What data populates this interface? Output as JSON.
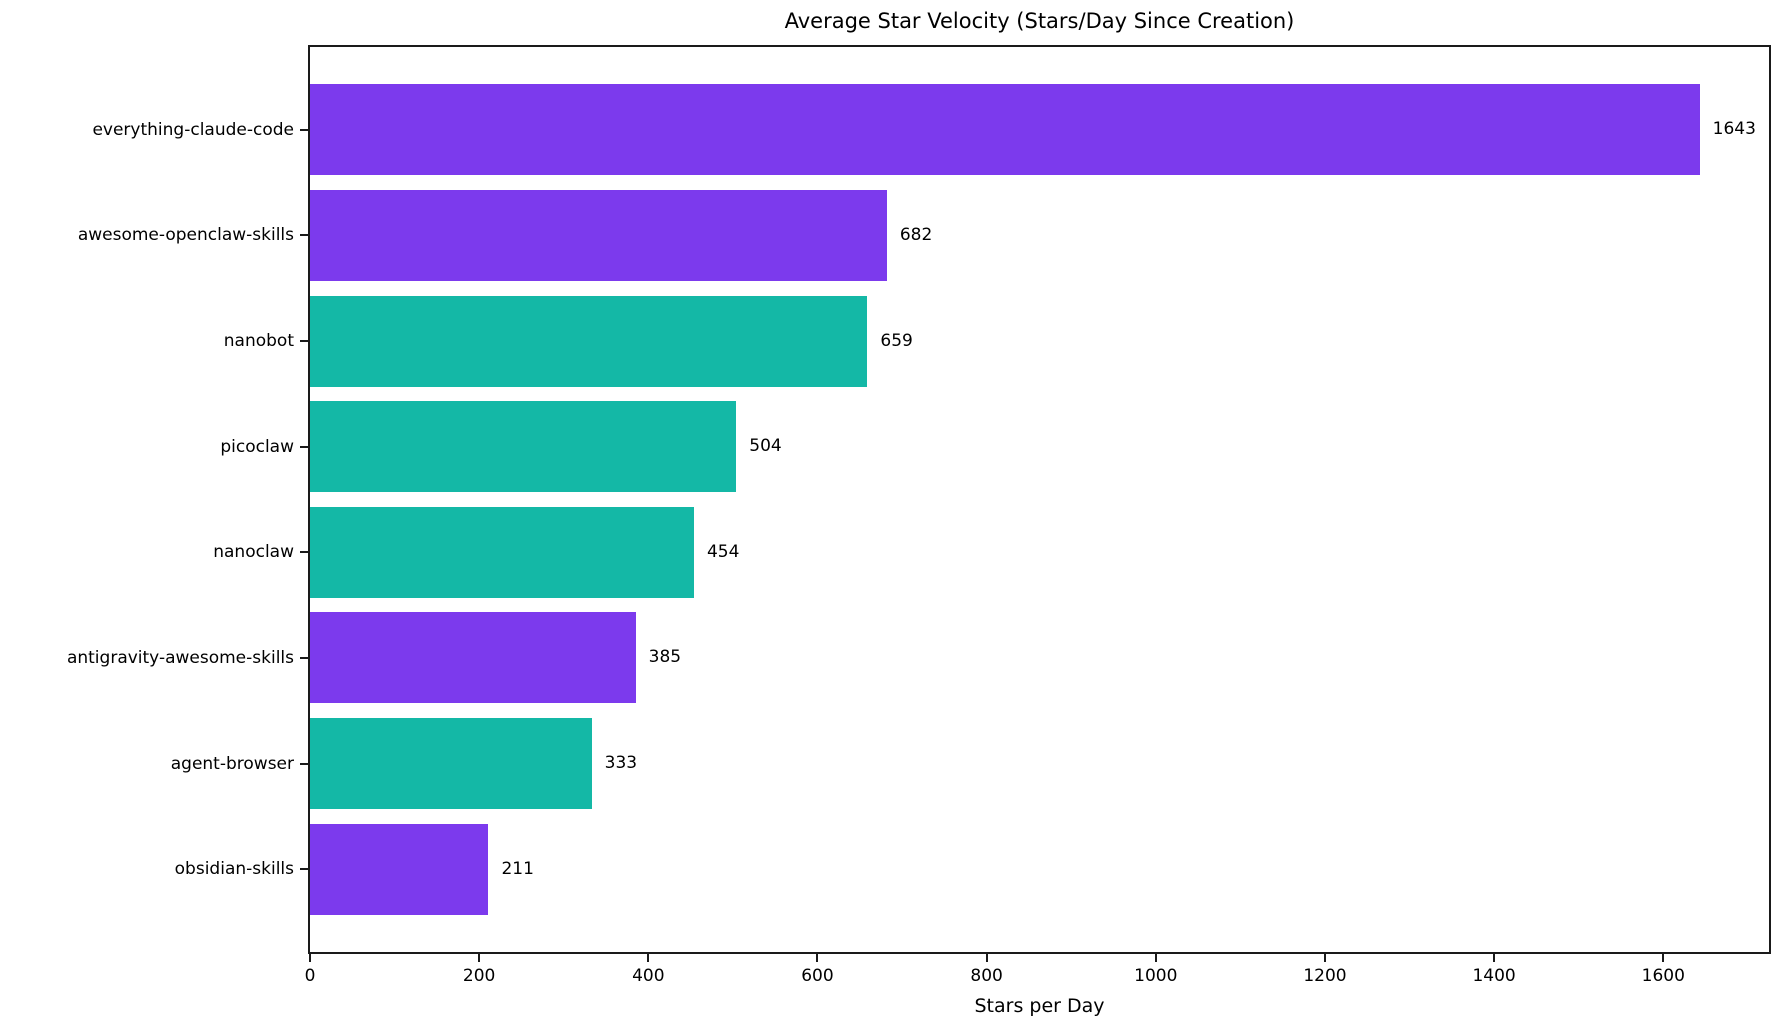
{
  "chart_data": {
    "type": "bar",
    "orientation": "horizontal",
    "title": "Average Star Velocity (Stars/Day Since Creation)",
    "xlabel": "Stars per Day",
    "ylabel": "",
    "categories": [
      "everything-claude-code",
      "awesome-openclaw-skills",
      "nanobot",
      "picoclaw",
      "nanoclaw",
      "antigravity-awesome-skills",
      "agent-browser",
      "obsidian-skills"
    ],
    "values": [
      1643,
      682,
      659,
      504,
      454,
      385,
      333,
      211
    ],
    "value_labels": [
      "1643",
      "682",
      "659",
      "504",
      "454",
      "385",
      "333",
      "211"
    ],
    "bar_colors": [
      "#7C3AED",
      "#7C3AED",
      "#14B8A6",
      "#14B8A6",
      "#14B8A6",
      "#7C3AED",
      "#14B8A6",
      "#7C3AED"
    ],
    "x_ticks": [
      0,
      200,
      400,
      600,
      800,
      1000,
      1200,
      1400,
      1600
    ],
    "xlim": [
      0,
      1725
    ],
    "grid": false,
    "legend_visible": false
  },
  "colors": {
    "purple": "#7C3AED",
    "teal": "#14B8A6",
    "spine": "#1a1a1a",
    "text": "#000000",
    "background": "#ffffff"
  }
}
